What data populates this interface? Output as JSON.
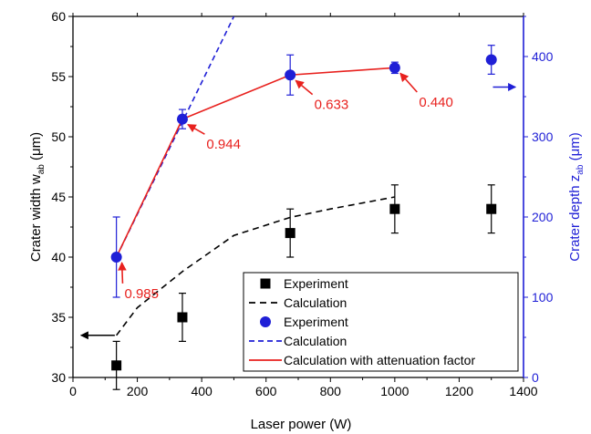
{
  "colors": {
    "black": "#000000",
    "blue": "#1f1fd6",
    "red": "#e8211e",
    "white": "#ffffff"
  },
  "chart_data": {
    "type": "scatter",
    "title": "",
    "xlabel": "Laser power (W)",
    "ylabel_left": {
      "main": "Crater width w",
      "sub": "ab",
      "unit": " (μm)"
    },
    "ylabel_right": {
      "main": "Crater depth z",
      "sub": "ab",
      "unit": " (μm)"
    },
    "xlim": [
      0,
      1400
    ],
    "ylim_left": [
      30,
      60
    ],
    "ylim_right": [
      0,
      450
    ],
    "xticks": [
      0,
      200,
      400,
      600,
      800,
      1000,
      1200,
      1400
    ],
    "yticks_left": [
      30,
      35,
      40,
      45,
      50,
      55,
      60
    ],
    "yticks_right": [
      0,
      100,
      200,
      300,
      400
    ],
    "grid": false,
    "legend_position": "bottom-right",
    "series": [
      {
        "name": "Experiment",
        "axis": "left",
        "kind": "markers",
        "marker": "square",
        "color": "#000000",
        "x": [
          135,
          340,
          675,
          1000,
          1300
        ],
        "y": [
          31,
          35,
          42,
          44,
          44
        ],
        "err": [
          2,
          2,
          2,
          2,
          2
        ]
      },
      {
        "name": "Calculation",
        "axis": "left",
        "kind": "line",
        "dash": "7,5",
        "color": "#000000",
        "x": [
          135,
          200,
          340,
          500,
          675,
          800,
          1000
        ],
        "y": [
          33.5,
          35.8,
          38.8,
          41.8,
          43.3,
          44.0,
          45.0
        ]
      },
      {
        "name": "Experiment",
        "axis": "right",
        "kind": "markers",
        "marker": "circle",
        "color": "#1f1fd6",
        "x": [
          135,
          340,
          675,
          1000,
          1300
        ],
        "y": [
          150,
          322,
          377,
          386,
          396
        ],
        "err": [
          50,
          12,
          25,
          7,
          18
        ]
      },
      {
        "name": "Calculation",
        "axis": "right",
        "kind": "line",
        "dash": "6,4",
        "color": "#1f1fd6",
        "x": [
          135,
          500
        ],
        "y": [
          150,
          450
        ]
      },
      {
        "name": "Calculation with attenuation factor",
        "axis": "right",
        "kind": "line",
        "color": "#e8211e",
        "x": [
          135,
          340,
          675,
          1000
        ],
        "y": [
          150,
          322,
          377,
          386
        ]
      }
    ],
    "annotations": [
      {
        "text": "0.985",
        "x": 135,
        "y": 150,
        "label_x": 160,
        "label_y": 36.6
      },
      {
        "text": "0.944",
        "x": 340,
        "y": 322,
        "label_x": 415,
        "label_y": 49.0
      },
      {
        "text": "0.633",
        "x": 675,
        "y": 377,
        "label_x": 750,
        "label_y": 52.3
      },
      {
        "text": "0.440",
        "x": 1000,
        "y": 386,
        "label_x": 1075,
        "label_y": 52.5
      }
    ],
    "axis_arrows": [
      {
        "axis": "left",
        "direction": "left",
        "x_from": 130,
        "x_to": 25,
        "y": 33.5
      },
      {
        "axis": "right",
        "direction": "right",
        "x_from": 1305,
        "x_to": 1375,
        "y": 362
      }
    ]
  }
}
